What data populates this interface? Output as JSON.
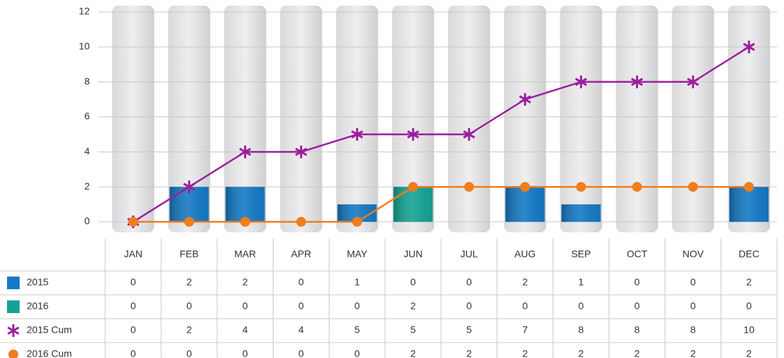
{
  "chart_data": {
    "type": "bar",
    "categories": [
      "JAN",
      "FEB",
      "MAR",
      "APR",
      "MAY",
      "JUN",
      "JUL",
      "AUG",
      "SEP",
      "OCT",
      "NOV",
      "DEC"
    ],
    "series": [
      {
        "name": "2015",
        "kind": "bar",
        "color": "#1479c4",
        "values": [
          0,
          2,
          2,
          0,
          1,
          0,
          0,
          2,
          1,
          0,
          0,
          2
        ]
      },
      {
        "name": "2016",
        "kind": "bar",
        "color": "#13a393",
        "values": [
          0,
          0,
          0,
          0,
          0,
          2,
          0,
          0,
          0,
          0,
          0,
          0
        ]
      },
      {
        "name": "2015 Cum",
        "kind": "line",
        "marker": "star",
        "color": "#9b1f9b",
        "values": [
          0,
          2,
          4,
          4,
          5,
          5,
          5,
          7,
          8,
          8,
          8,
          10
        ]
      },
      {
        "name": "2016 Cum",
        "kind": "line",
        "marker": "circle",
        "color": "#f07d1e",
        "values": [
          0,
          0,
          0,
          0,
          0,
          2,
          2,
          2,
          2,
          2,
          2,
          2
        ]
      }
    ],
    "ylim": [
      -0.6,
      12.4
    ],
    "yticks": [
      0,
      2,
      4,
      6,
      8,
      10,
      12
    ],
    "grid": true
  }
}
